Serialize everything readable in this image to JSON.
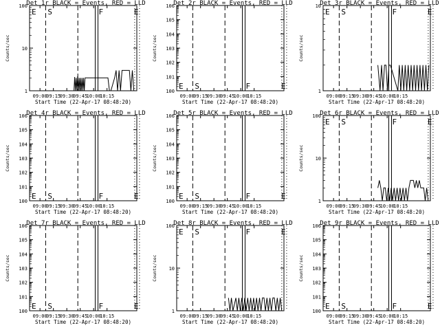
{
  "figure": {
    "background": "#ffffff",
    "ink": "#000000",
    "events_color": "#000000",
    "lld_color": "#ff0000"
  },
  "chart_data": [
    {
      "type": "line",
      "title": "Det 1r BLACK = Events, RED = LLD",
      "xlabel": "Start Time (22-Apr-17 08:48:20)",
      "ylabel": "Counts/sec",
      "y_scale": "log",
      "ylim": [
        1,
        100
      ],
      "y_ticks": [
        "1",
        "10",
        "100"
      ],
      "x_ticks": [
        "09:00",
        "09:15",
        "09:30",
        "09:45",
        "10:00",
        "10:15"
      ],
      "xlim_minutes": [
        0,
        120
      ],
      "markers": {
        "E1": 6,
        "S": 21,
        "dash2": 54,
        "F": 75,
        "E2": 123,
        "dot1": 127,
        "dot2": 180
      },
      "events": [
        [
          60,
          1.0
        ],
        [
          61,
          2.1
        ],
        [
          62,
          1.0
        ],
        [
          63,
          2.0
        ],
        [
          64,
          1.0
        ],
        [
          65,
          2.2
        ],
        [
          66,
          1.0
        ],
        [
          67,
          2.0
        ],
        [
          68,
          1.0
        ],
        [
          69,
          2.0
        ],
        [
          70,
          1.0
        ],
        [
          71,
          2.0
        ],
        [
          72,
          1.0
        ],
        [
          73,
          2.0
        ],
        [
          74,
          1.0
        ],
        [
          75,
          2.0
        ],
        [
          80,
          2.0
        ],
        [
          82,
          2.0
        ],
        [
          84,
          2.0
        ],
        [
          86,
          2.0
        ],
        [
          88,
          2.0
        ],
        [
          90,
          2.0
        ],
        [
          92,
          2.0
        ],
        [
          94,
          2.0
        ],
        [
          96,
          2.0
        ],
        [
          98,
          2.0
        ],
        [
          100,
          2.0
        ],
        [
          102,
          2.0
        ],
        [
          104,
          2.0
        ],
        [
          106,
          2.0
        ],
        [
          108,
          1.0
        ],
        [
          110,
          1.0
        ],
        [
          115,
          2.0
        ],
        [
          117,
          3.0
        ],
        [
          119,
          1.0
        ],
        [
          121,
          3.0
        ],
        [
          123,
          1.0
        ],
        [
          125,
          3.0
        ],
        [
          127,
          3.0
        ],
        [
          129,
          3.0
        ],
        [
          131,
          3.0
        ],
        [
          133,
          3.0
        ],
        [
          135,
          3.0
        ],
        [
          137,
          1.0
        ],
        [
          139,
          3.0
        ],
        [
          141,
          1.0
        ],
        [
          143,
          1.0
        ]
      ]
    },
    {
      "type": "line",
      "title": "Det 2r BLACK = Events, RED = LLD",
      "xlabel": "Start Time (22-Apr-17 08:48:20)",
      "ylabel": "Counts/sec",
      "y_scale": "log",
      "ylim": [
        1,
        1000000
      ],
      "y_ticks": [
        "10^0",
        "10^1",
        "10^2",
        "10^3",
        "10^4",
        "10^5",
        "10^6"
      ],
      "x_ticks": [
        "09:00",
        "09:15",
        "09:30",
        "09:45",
        "10:00",
        "10:15"
      ],
      "xlim_minutes": [
        0,
        120
      ],
      "markers": {
        "E1": 6,
        "S": 21,
        "dash2": 54,
        "F": 75,
        "E2": 123,
        "dot1": 127,
        "dot2": 180
      },
      "events": []
    },
    {
      "type": "line",
      "title": "Det 3r BLACK = Events, RED = LLD",
      "xlabel": "Start Time (22-Apr-17 08:48:20)",
      "ylabel": "Counts/sec",
      "y_scale": "log",
      "ylim": [
        1,
        10
      ],
      "y_ticks": [
        "1",
        "10"
      ],
      "x_ticks": [
        "09:00",
        "09:15",
        "09:30",
        "09:45",
        "10:00",
        "10:15"
      ],
      "xlim_minutes": [
        0,
        120
      ],
      "markers": {
        "E1": 6,
        "S": 21,
        "dash2": 54,
        "F": 75,
        "E2": 123,
        "dot1": 127,
        "dot2": 180
      },
      "events": [
        [
          74,
          2.0
        ],
        [
          77,
          1.0
        ],
        [
          79,
          2.0
        ],
        [
          81,
          1.0
        ],
        [
          83,
          2.0
        ],
        [
          85,
          2.0
        ],
        [
          87,
          1.0
        ],
        [
          89,
          2.0
        ],
        [
          91,
          2.0
        ],
        [
          101,
          1.0
        ],
        [
          103,
          2.0
        ],
        [
          105,
          1.0
        ],
        [
          107,
          2.0
        ],
        [
          109,
          1.0
        ],
        [
          111,
          2.0
        ],
        [
          113,
          1.0
        ],
        [
          115,
          2.0
        ],
        [
          117,
          1.0
        ],
        [
          119,
          2.0
        ],
        [
          121,
          1.0
        ],
        [
          123,
          2.0
        ],
        [
          125,
          1.0
        ],
        [
          127,
          2.0
        ],
        [
          129,
          1.0
        ],
        [
          131,
          2.0
        ],
        [
          133,
          1.0
        ],
        [
          135,
          2.0
        ],
        [
          137,
          1.0
        ],
        [
          139,
          2.0
        ],
        [
          141,
          1.0
        ],
        [
          143,
          2.0
        ]
      ]
    },
    {
      "type": "line",
      "title": "Det 4r BLACK = Events, RED = LLD",
      "xlabel": "Start Time (22-Apr-17 08:48:20)",
      "ylabel": "Counts/sec",
      "y_scale": "log",
      "ylim": [
        1,
        1000000
      ],
      "y_ticks": [
        "10^0",
        "10^1",
        "10^2",
        "10^3",
        "10^4",
        "10^5",
        "10^6"
      ],
      "x_ticks": [
        "09:00",
        "09:15",
        "09:30",
        "09:45",
        "10:00",
        "10:15"
      ],
      "xlim_minutes": [
        0,
        120
      ],
      "markers": {
        "E1": 6,
        "S": 21,
        "dash2": 54,
        "F": 75,
        "E2": 123,
        "dot1": 127,
        "dot2": 180
      },
      "events": []
    },
    {
      "type": "line",
      "title": "Det 5r BLACK = Events, RED = LLD",
      "xlabel": "Start Time (22-Apr-17 08:48:20)",
      "ylabel": "Counts/sec",
      "y_scale": "log",
      "ylim": [
        1,
        1000000
      ],
      "y_ticks": [
        "10^0",
        "10^1",
        "10^2",
        "10^3",
        "10^4",
        "10^5",
        "10^6"
      ],
      "x_ticks": [
        "09:00",
        "09:15",
        "09:30",
        "09:45",
        "10:00",
        "10:15"
      ],
      "xlim_minutes": [
        0,
        120
      ],
      "markers": {
        "E1": 6,
        "S": 21,
        "dash2": 54,
        "F": 75,
        "E2": 123,
        "dot1": 127,
        "dot2": 180
      },
      "events": []
    },
    {
      "type": "line",
      "title": "Det 6r BLACK = Events, RED = LLD",
      "xlabel": "Start Time (22-Apr-17 08:48:20)",
      "ylabel": "Counts/sec",
      "y_scale": "log",
      "ylim": [
        1,
        100
      ],
      "y_ticks": [
        "1",
        "10",
        "100"
      ],
      "x_ticks": [
        "09:00",
        "09:15",
        "09:30",
        "09:45",
        "10:00",
        "10:15"
      ],
      "xlim_minutes": [
        0,
        120
      ],
      "markers": {
        "E1": 6,
        "S": 21,
        "dash2": 54,
        "F": 75,
        "E2": 123,
        "dot1": 127,
        "dot2": 180
      },
      "events": [
        [
          74,
          2.0
        ],
        [
          76,
          3.0
        ],
        [
          78,
          2.0
        ],
        [
          80,
          1.0
        ],
        [
          82,
          2.0
        ],
        [
          84,
          2.0
        ],
        [
          86,
          1.0
        ],
        [
          88,
          2.0
        ],
        [
          90,
          1.0
        ],
        [
          92,
          2.0
        ],
        [
          94,
          1.0
        ],
        [
          96,
          2.0
        ],
        [
          98,
          1.0
        ],
        [
          100,
          2.0
        ],
        [
          102,
          1.0
        ],
        [
          104,
          2.0
        ],
        [
          106,
          1.0
        ],
        [
          108,
          2.0
        ],
        [
          110,
          1.0
        ],
        [
          112,
          2.0
        ],
        [
          114,
          1.0
        ],
        [
          116,
          2.0
        ],
        [
          118,
          3.0
        ],
        [
          120,
          3.0
        ],
        [
          122,
          3.0
        ],
        [
          124,
          2.0
        ],
        [
          126,
          3.0
        ],
        [
          128,
          2.0
        ],
        [
          130,
          3.0
        ],
        [
          132,
          2.0
        ],
        [
          134,
          2.0
        ],
        [
          136,
          2.0
        ],
        [
          138,
          1.0
        ],
        [
          140,
          2.0
        ],
        [
          142,
          1.0
        ]
      ]
    },
    {
      "type": "line",
      "title": "Det 7r BLACK = Events, RED = LLD",
      "xlabel": "Start Time (22-Apr-17 08:48:20)",
      "ylabel": "Counts/sec",
      "y_scale": "log",
      "ylim": [
        1,
        1000000
      ],
      "y_ticks": [
        "10^0",
        "10^1",
        "10^2",
        "10^3",
        "10^4",
        "10^5",
        "10^6"
      ],
      "x_ticks": [
        "09:00",
        "09:15",
        "09:30",
        "09:45",
        "10:00",
        "10:15"
      ],
      "xlim_minutes": [
        0,
        120
      ],
      "markers": {
        "E1": 6,
        "S": 21,
        "dash2": 54,
        "F": 75,
        "E2": 123,
        "dot1": 127,
        "dot2": 180
      },
      "events": []
    },
    {
      "type": "line",
      "title": "Det 8r BLACK = Events, RED = LLD",
      "xlabel": "Start Time (22-Apr-17 08:48:20)",
      "ylabel": "Counts/sec",
      "y_scale": "log",
      "ylim": [
        1,
        100
      ],
      "y_ticks": [
        "1",
        "10",
        "100"
      ],
      "x_ticks": [
        "09:00",
        "09:15",
        "09:30",
        "09:45",
        "10:00",
        "10:15"
      ],
      "xlim_minutes": [
        0,
        120
      ],
      "markers": {
        "E1": 6,
        "S": 21,
        "dash2": 54,
        "F": 75,
        "E2": 123,
        "dot1": 127,
        "dot2": 180
      },
      "events": [
        [
          70,
          2.0
        ],
        [
          72,
          1.0
        ],
        [
          74,
          2.0
        ],
        [
          76,
          1.0
        ],
        [
          80,
          2.0
        ],
        [
          82,
          1.0
        ],
        [
          84,
          2.0
        ],
        [
          86,
          1.0
        ],
        [
          88,
          2.0
        ],
        [
          90,
          1.0
        ],
        [
          92,
          2.0
        ],
        [
          94,
          1.0
        ],
        [
          96,
          2.0
        ],
        [
          98,
          1.0
        ],
        [
          100,
          2.0
        ],
        [
          102,
          1.0
        ],
        [
          104,
          2.0
        ],
        [
          106,
          1.0
        ],
        [
          108,
          2.0
        ],
        [
          110,
          1.0
        ],
        [
          112,
          2.0
        ],
        [
          114,
          1.0
        ],
        [
          116,
          2.0
        ],
        [
          118,
          2.0
        ],
        [
          120,
          1.0
        ],
        [
          122,
          2.0
        ],
        [
          124,
          1.0
        ],
        [
          126,
          2.0
        ],
        [
          128,
          1.0
        ],
        [
          130,
          2.0
        ],
        [
          132,
          2.0
        ],
        [
          134,
          1.0
        ],
        [
          136,
          2.0
        ],
        [
          138,
          1.0
        ],
        [
          140,
          2.0
        ],
        [
          142,
          1.0
        ]
      ]
    },
    {
      "type": "line",
      "title": "Det 9r BLACK = Events, RED = LLD",
      "xlabel": "Start Time (22-Apr-17 08:48:20)",
      "ylabel": "Counts/sec",
      "y_scale": "log",
      "ylim": [
        1,
        1000000
      ],
      "y_ticks": [
        "10^0",
        "10^1",
        "10^2",
        "10^3",
        "10^4",
        "10^5",
        "10^6"
      ],
      "x_ticks": [
        "09:00",
        "09:15",
        "09:30",
        "09:45",
        "10:00",
        "10:15"
      ],
      "xlim_minutes": [
        0,
        120
      ],
      "markers": {
        "E1": 6,
        "S": 21,
        "dash2": 54,
        "F": 75,
        "E2": 123,
        "dot1": 127,
        "dot2": 180
      },
      "events": []
    }
  ]
}
